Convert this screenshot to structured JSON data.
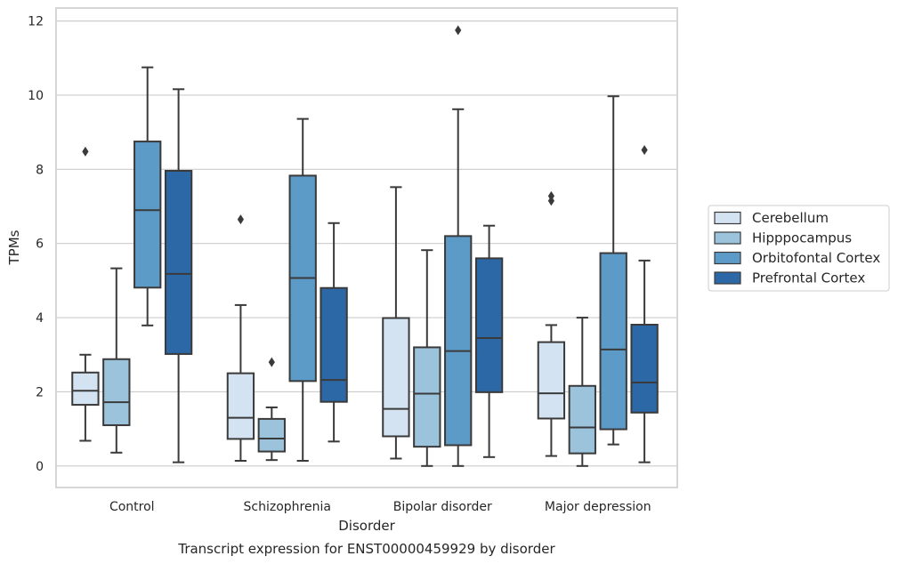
{
  "chart_data": {
    "type": "box",
    "caption": "Transcript expression for ENST00000459929 by disorder",
    "xlabel": "Disorder",
    "ylabel": "TPMs",
    "ylim": [
      -0.58,
      12.35
    ],
    "yticks": [
      0,
      2,
      4,
      6,
      8,
      10,
      12
    ],
    "grid": "horizontal",
    "legend_position": "right",
    "categories": [
      "Control",
      "Schizophrenia",
      "Bipolar disorder",
      "Major depression"
    ],
    "series": [
      {
        "name": "Cerebellum",
        "color": "#d3e3f2",
        "boxes": [
          {
            "whisker_low": 0.68,
            "q1": 1.65,
            "median": 2.03,
            "q3": 2.52,
            "whisker_high": 3.0,
            "outliers": [
              8.48
            ]
          },
          {
            "whisker_low": 0.14,
            "q1": 0.73,
            "median": 1.3,
            "q3": 2.5,
            "whisker_high": 4.34,
            "outliers": [
              6.65
            ]
          },
          {
            "whisker_low": 0.2,
            "q1": 0.8,
            "median": 1.54,
            "q3": 3.99,
            "whisker_high": 7.52,
            "outliers": []
          },
          {
            "whisker_low": 0.27,
            "q1": 1.28,
            "median": 1.96,
            "q3": 3.34,
            "whisker_high": 3.8,
            "outliers": [
              7.15,
              7.28
            ]
          }
        ]
      },
      {
        "name": "Hipppocampus",
        "color": "#9cc3dc",
        "boxes": [
          {
            "whisker_low": 0.36,
            "q1": 1.1,
            "median": 1.72,
            "q3": 2.88,
            "whisker_high": 5.33,
            "outliers": []
          },
          {
            "whisker_low": 0.16,
            "q1": 0.39,
            "median": 0.74,
            "q3": 1.27,
            "whisker_high": 1.58,
            "outliers": [
              2.8
            ]
          },
          {
            "whisker_low": 0.0,
            "q1": 0.52,
            "median": 1.95,
            "q3": 3.2,
            "whisker_high": 5.82,
            "outliers": []
          },
          {
            "whisker_low": 0.0,
            "q1": 0.34,
            "median": 1.04,
            "q3": 2.16,
            "whisker_high": 4.0,
            "outliers": []
          }
        ]
      },
      {
        "name": "Orbitofontal Cortex",
        "color": "#5c9ac7",
        "boxes": [
          {
            "whisker_low": 3.79,
            "q1": 4.81,
            "median": 6.9,
            "q3": 8.75,
            "whisker_high": 10.75,
            "outliers": []
          },
          {
            "whisker_low": 0.14,
            "q1": 2.29,
            "median": 5.07,
            "q3": 7.83,
            "whisker_high": 9.36,
            "outliers": []
          },
          {
            "whisker_low": 0.0,
            "q1": 0.56,
            "median": 3.1,
            "q3": 6.2,
            "whisker_high": 9.62,
            "outliers": [
              11.75
            ]
          },
          {
            "whisker_low": 0.58,
            "q1": 0.99,
            "median": 3.14,
            "q3": 5.74,
            "whisker_high": 9.97,
            "outliers": []
          }
        ]
      },
      {
        "name": "Prefrontal Cortex",
        "color": "#2c67a6",
        "boxes": [
          {
            "whisker_low": 0.1,
            "q1": 3.02,
            "median": 5.18,
            "q3": 7.96,
            "whisker_high": 10.16,
            "outliers": []
          },
          {
            "whisker_low": 0.66,
            "q1": 1.73,
            "median": 2.32,
            "q3": 4.8,
            "whisker_high": 6.55,
            "outliers": []
          },
          {
            "whisker_low": 0.24,
            "q1": 1.99,
            "median": 3.45,
            "q3": 5.6,
            "whisker_high": 6.48,
            "outliers": []
          },
          {
            "whisker_low": 0.1,
            "q1": 1.44,
            "median": 2.25,
            "q3": 3.81,
            "whisker_high": 5.54,
            "outliers": [
              8.52
            ]
          }
        ]
      }
    ]
  }
}
